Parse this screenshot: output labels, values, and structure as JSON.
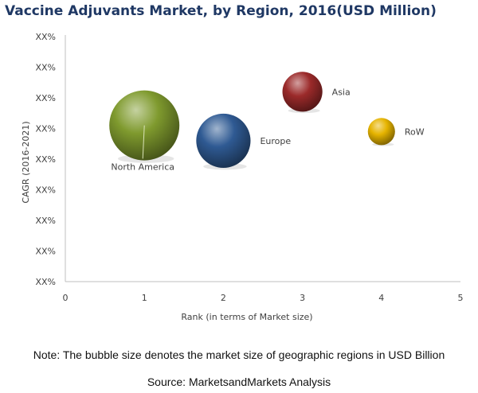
{
  "title": "Vaccine Adjuvants Market, by Region, 2016(USD Million)",
  "note": "Note: The bubble size denotes the market size of geographic regions in USD Billion",
  "source": "Source: MarketsandMarkets Analysis",
  "chart_data": {
    "type": "scatter",
    "variant": "bubble",
    "title": "Vaccine Adjuvants Market, by Region, 2016(USD Million)",
    "xlabel": "Rank (in terms of Market size)",
    "ylabel": "CAGR (2016-2021)",
    "xlim": [
      0,
      5
    ],
    "x_ticks": [
      "0",
      "1",
      "2",
      "3",
      "4",
      "5"
    ],
    "y_ticks": [
      "XX%",
      "XX%",
      "XX%",
      "XX%",
      "XX%",
      "XX%",
      "XX%",
      "XX%",
      "XX%"
    ],
    "y_ticks_order": "bottom-to-top",
    "ylim": [
      0,
      8
    ],
    "grid": false,
    "series": [
      {
        "label": "North America",
        "x": 1,
        "y": 5.1,
        "size": 4.0,
        "color": "#7f9a2e"
      },
      {
        "label": "Europe",
        "x": 2,
        "y": 4.6,
        "size": 2.4,
        "color": "#2f5a93"
      },
      {
        "label": "Asia",
        "x": 3,
        "y": 6.2,
        "size": 1.3,
        "color": "#9b2a2a"
      },
      {
        "label": "RoW",
        "x": 4,
        "y": 4.9,
        "size": 0.6,
        "color": "#e6b400"
      }
    ]
  }
}
